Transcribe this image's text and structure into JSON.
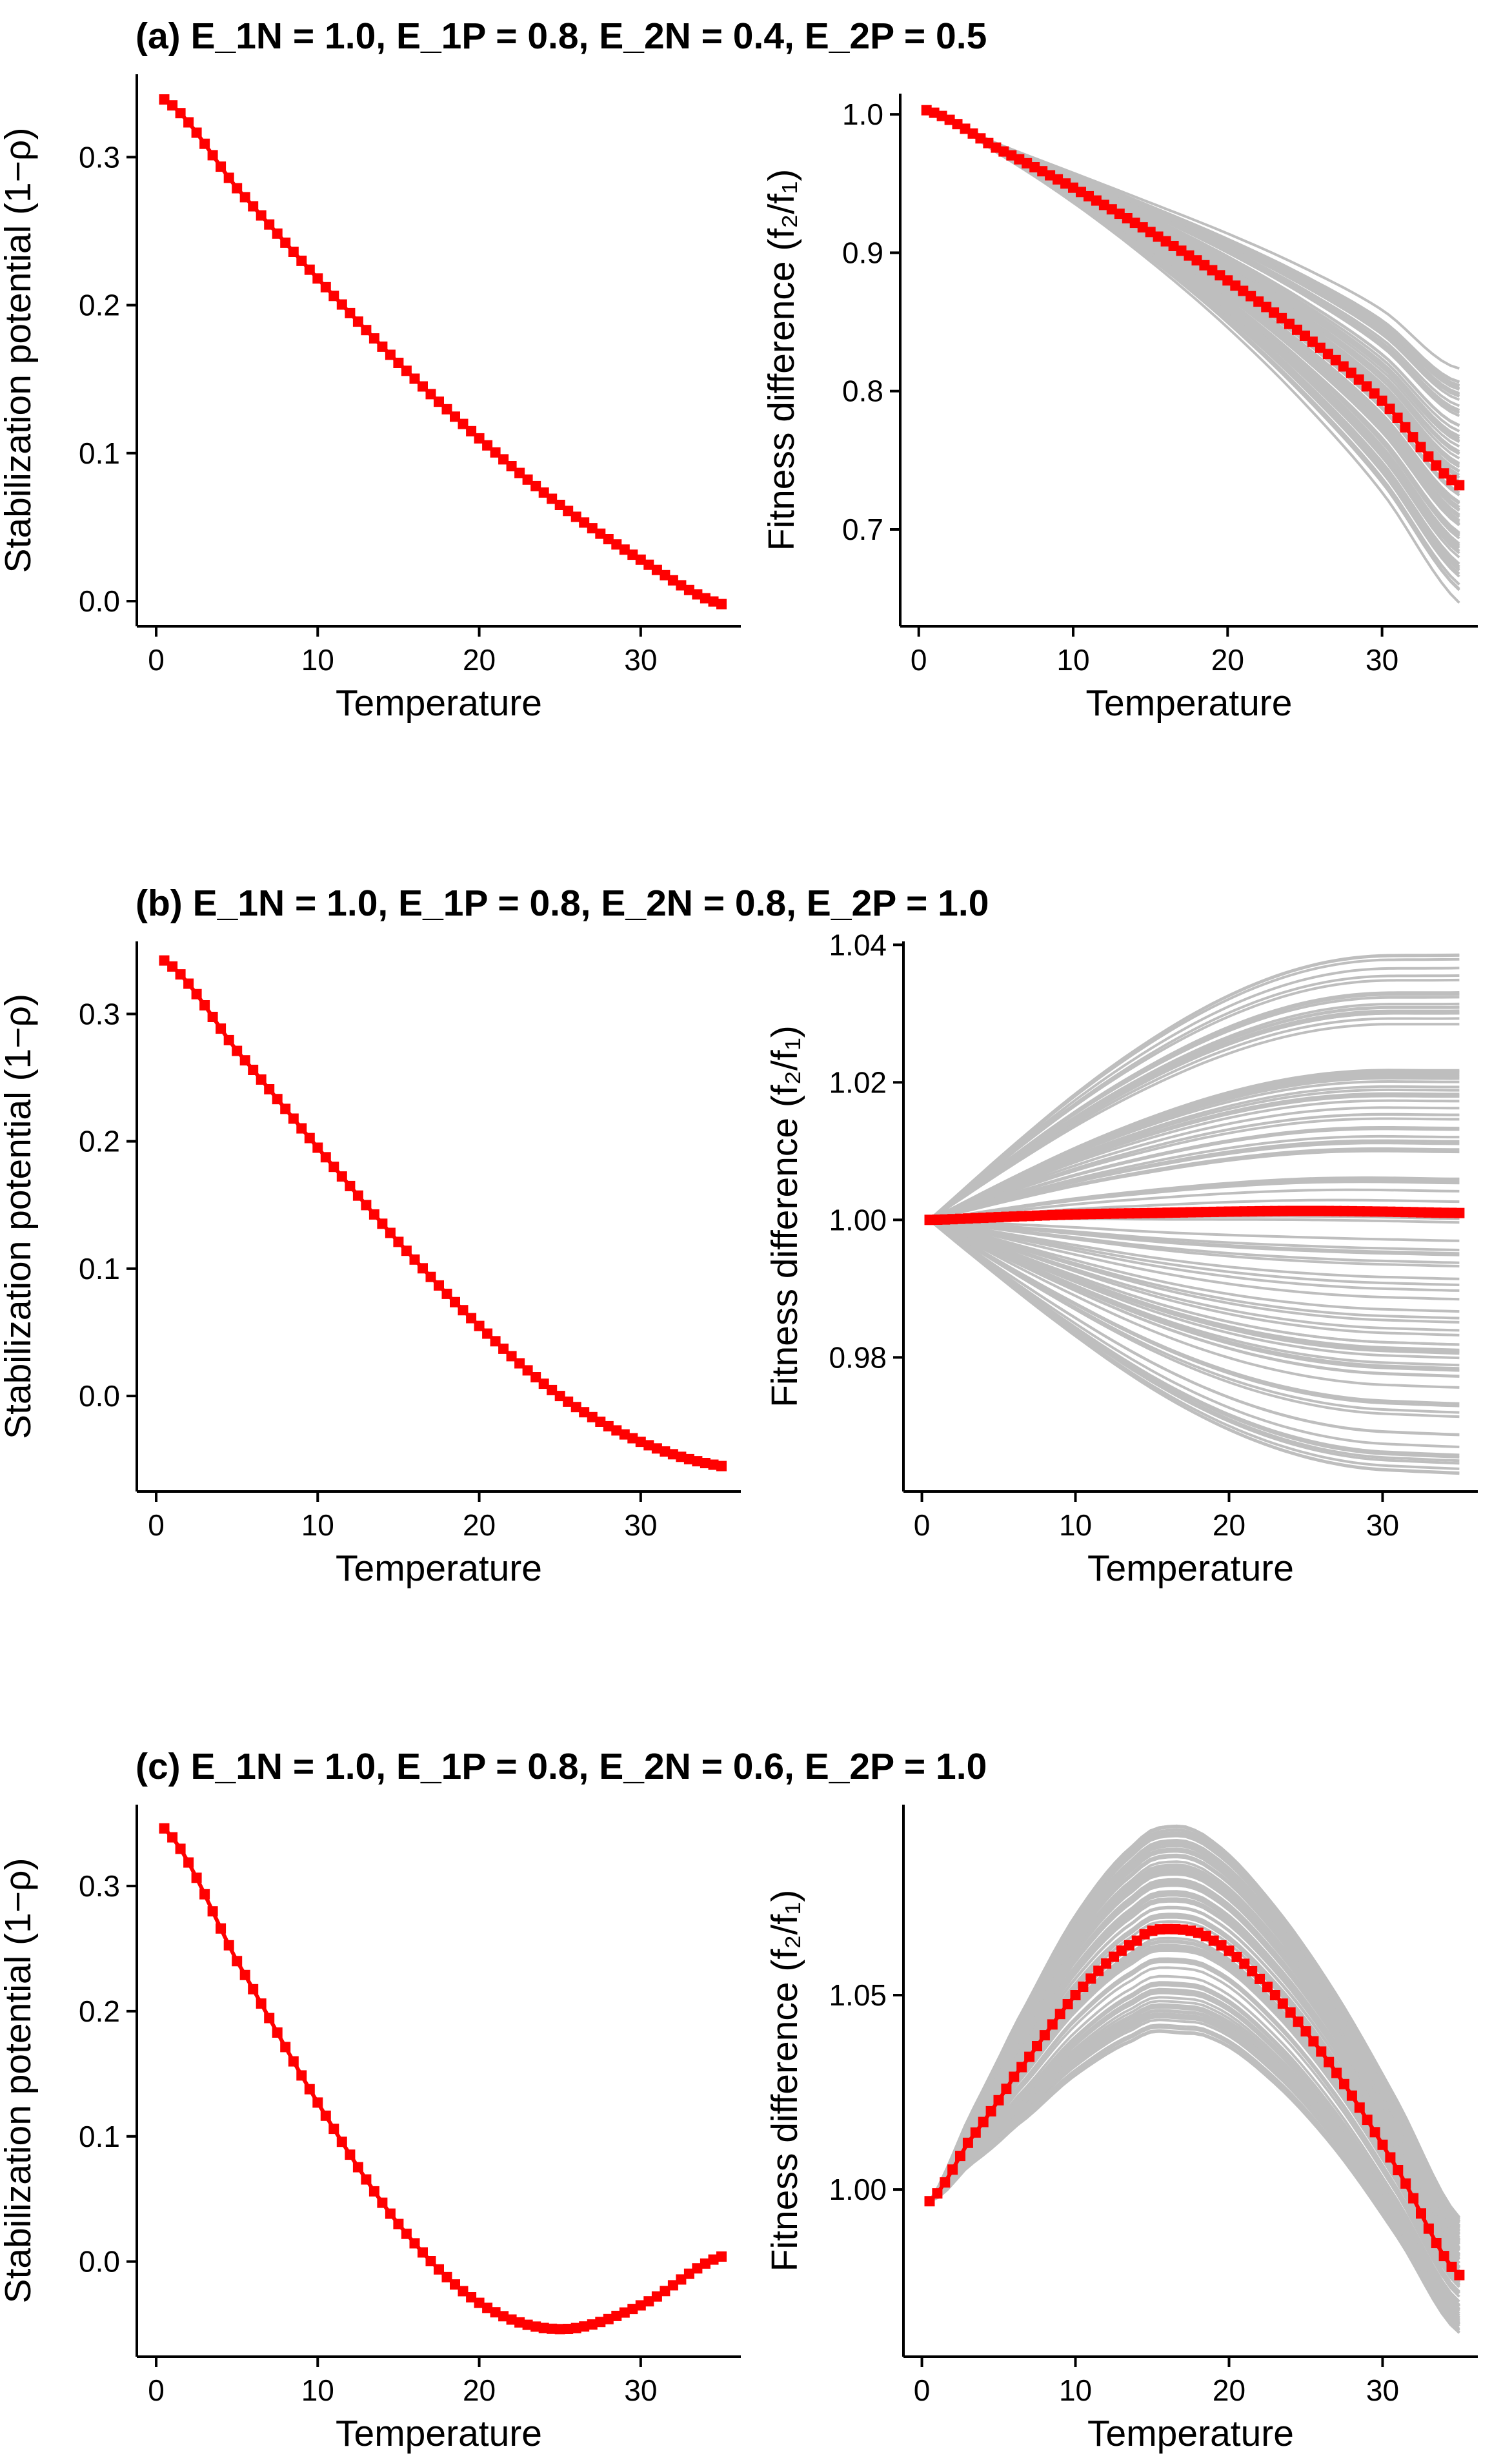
{
  "panels": [
    {
      "title": "(a) E_1N = 1.0, E_1P = 0.8, E_2N = 0.4, E_2P = 0.5"
    },
    {
      "title": "(b) E_1N = 1.0, E_1P = 0.8, E_2N = 0.8, E_2P = 1.0"
    },
    {
      "title": "(c) E_1N = 1.0, E_1P = 0.8, E_2N = 0.6, E_2P = 1.0"
    }
  ],
  "colors": {
    "mean_series": "#ff0000",
    "simulations": "#bebebe",
    "axis": "#000000"
  },
  "chart_data": [
    {
      "panel": "a",
      "type": "line",
      "xlabel": "Temperature",
      "ylabel": "Stabilization potential (1−ρ)",
      "xlim": [
        -1.2,
        36.2
      ],
      "ylim": [
        -0.017,
        0.356
      ],
      "xticks": [
        0,
        10,
        20,
        30
      ],
      "yticks": [
        0.0,
        0.1,
        0.2,
        0.3
      ],
      "ytick_labels": [
        "0.0",
        "0.1",
        "0.2",
        "0.3"
      ],
      "x": [
        0.5,
        5,
        10,
        15,
        20,
        25,
        30,
        35
      ],
      "series": [
        {
          "values": [
            0.339,
            0.279,
            0.218,
            0.161,
            0.11,
            0.065,
            0.028,
            -0.002
          ],
          "marker": "square"
        }
      ]
    },
    {
      "panel": "a",
      "type": "line",
      "xlabel": "Temperature",
      "ylabel": "Fitness difference (f₂/f₁)",
      "xlim": [
        -1.2,
        36.2
      ],
      "ylim": [
        0.63,
        1.015
      ],
      "xticks": [
        0,
        10,
        20,
        30
      ],
      "yticks": [
        0.7,
        0.8,
        0.9,
        1.0
      ],
      "ytick_labels": [
        "0.7",
        "0.8",
        "0.9",
        "1.0"
      ],
      "x": [
        0.5,
        5,
        10,
        15,
        20,
        25,
        30,
        35
      ],
      "series": [
        {
          "values": [
            1.003,
            0.976,
            0.947,
            0.915,
            0.88,
            0.84,
            0.793,
            0.732
          ],
          "marker": "square"
        }
      ],
      "simulations": {
        "count": 100,
        "values_at_35_range": [
          0.648,
          0.816
        ]
      }
    },
    {
      "panel": "b",
      "type": "line",
      "xlabel": "Temperature",
      "ylabel": "Stabilization potential (1−ρ)",
      "xlim": [
        -1.2,
        36.2
      ],
      "ylim": [
        -0.075,
        0.357
      ],
      "xticks": [
        0,
        10,
        20,
        30
      ],
      "yticks": [
        0.0,
        0.1,
        0.2,
        0.3
      ],
      "ytick_labels": [
        "0.0",
        "0.1",
        "0.2",
        "0.3"
      ],
      "x": [
        0.5,
        5,
        10,
        15,
        20,
        25,
        30,
        35
      ],
      "series": [
        {
          "values": [
            0.342,
            0.271,
            0.195,
            0.121,
            0.055,
            0.0,
            -0.036,
            -0.055
          ],
          "marker": "square"
        }
      ]
    },
    {
      "panel": "b",
      "type": "line",
      "xlabel": "Temperature",
      "ylabel": "Fitness difference (f₂/f₁)",
      "xlim": [
        -1.2,
        36.2
      ],
      "ylim": [
        0.9605,
        1.0405
      ],
      "xticks": [
        0,
        10,
        20,
        30
      ],
      "yticks": [
        0.98,
        1.0,
        1.02,
        1.04
      ],
      "ytick_labels": [
        "0.98",
        "1.00",
        "1.02",
        "1.04"
      ],
      "x": [
        0.5,
        5,
        10,
        15,
        20,
        25,
        30,
        35
      ],
      "series": [
        {
          "values": [
            1.0,
            1.0004,
            1.0008,
            1.001,
            1.0012,
            1.0013,
            1.0012,
            1.001
          ],
          "marker": "square"
        }
      ],
      "simulations": {
        "count": 100,
        "values_range": [
          0.965,
          1.037
        ]
      }
    },
    {
      "panel": "c",
      "type": "line",
      "xlabel": "Temperature",
      "ylabel": "Stabilization potential (1−ρ)",
      "xlim": [
        -1.2,
        36.2
      ],
      "ylim": [
        -0.076,
        0.365
      ],
      "xticks": [
        0,
        10,
        20,
        30
      ],
      "yticks": [
        0.0,
        0.1,
        0.2,
        0.3
      ],
      "ytick_labels": [
        "0.0",
        "0.1",
        "0.2",
        "0.3"
      ],
      "x": [
        0.5,
        5,
        10,
        15,
        20,
        25,
        30,
        35
      ],
      "series": [
        {
          "values": [
            0.346,
            0.24,
            0.127,
            0.03,
            -0.033,
            -0.054,
            -0.035,
            0.004
          ],
          "marker": "square"
        }
      ]
    },
    {
      "panel": "c",
      "type": "line",
      "xlabel": "Temperature",
      "ylabel": "Fitness difference (f₂/f₁)",
      "xlim": [
        -1.2,
        36.2
      ],
      "ylim": [
        0.957,
        1.099
      ],
      "xticks": [
        0,
        10,
        20,
        30
      ],
      "yticks": [
        1.0,
        1.05
      ],
      "ytick_labels": [
        "1.00",
        "1.05"
      ],
      "x": [
        0.5,
        3,
        6,
        10,
        14,
        16,
        19,
        23,
        27,
        31,
        35
      ],
      "series": [
        {
          "values": [
            0.997,
            1.012,
            1.029,
            1.05,
            1.064,
            1.067,
            1.064,
            1.05,
            1.03,
            1.005,
            0.978
          ],
          "marker": "square"
        }
      ],
      "simulations": {
        "count": 100,
        "peak_range": [
          1.04,
          1.095
        ],
        "values_at_35_range": [
          0.96,
          0.99
        ]
      }
    }
  ]
}
